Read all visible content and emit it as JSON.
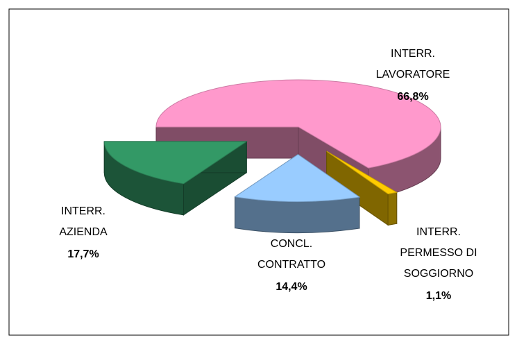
{
  "chart_data": {
    "type": "pie3d",
    "categories": [
      "INTERR.\nLAVORATORE",
      "INTERR.\nPERMESSO DI\nSOGGIORNO",
      "CONCL.\nCONTRATTO",
      "INTERR.\nAZIENDA"
    ],
    "values": [
      66.8,
      1.1,
      14.4,
      17.7
    ],
    "value_labels": [
      "66,8%",
      "1,1%",
      "14,4%",
      "17,7%"
    ],
    "colors": [
      "#ff99cc",
      "#ffcc00",
      "#99ccff",
      "#339966"
    ]
  }
}
